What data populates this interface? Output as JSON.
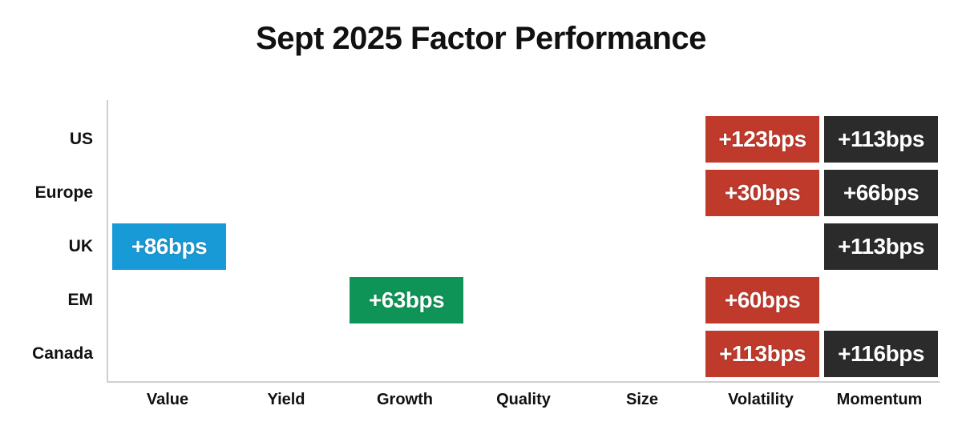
{
  "chart_data": {
    "type": "heatmap",
    "title": "Sept 2025 Factor Performance",
    "unit": "bps",
    "rows": [
      "US",
      "Europe",
      "UK",
      "EM",
      "Canada"
    ],
    "columns": [
      "Value",
      "Yield",
      "Growth",
      "Quality",
      "Size",
      "Volatility",
      "Momentum"
    ],
    "cells": [
      {
        "row": "US",
        "col": "Volatility",
        "label": "+123bps",
        "value_bps": 123,
        "color": "red"
      },
      {
        "row": "US",
        "col": "Momentum",
        "label": "+113bps",
        "value_bps": 113,
        "color": "dark"
      },
      {
        "row": "Europe",
        "col": "Volatility",
        "label": "+30bps",
        "value_bps": 30,
        "color": "red"
      },
      {
        "row": "Europe",
        "col": "Momentum",
        "label": "+66bps",
        "value_bps": 66,
        "color": "dark"
      },
      {
        "row": "UK",
        "col": "Value",
        "label": "+86bps",
        "value_bps": 86,
        "color": "blue"
      },
      {
        "row": "UK",
        "col": "Momentum",
        "label": "+113bps",
        "value_bps": 113,
        "color": "dark"
      },
      {
        "row": "EM",
        "col": "Growth",
        "label": "+63bps",
        "value_bps": 63,
        "color": "green"
      },
      {
        "row": "EM",
        "col": "Volatility",
        "label": "+60bps",
        "value_bps": 60,
        "color": "red"
      },
      {
        "row": "Canada",
        "col": "Volatility",
        "label": "+113bps",
        "value_bps": 113,
        "color": "red"
      },
      {
        "row": "Canada",
        "col": "Momentum",
        "label": "+116bps",
        "value_bps": 116,
        "color": "dark"
      }
    ],
    "colors": {
      "red": "#c03a2c",
      "dark": "#2b2b2b",
      "blue": "#189ad6",
      "green": "#0e9456",
      "axis": "#cfcfcf",
      "text": "#111111",
      "cell_text": "#ffffff"
    },
    "layout": {
      "legend": "none",
      "grid": "off",
      "axis_style": "left-and-bottom light gray lines"
    }
  }
}
